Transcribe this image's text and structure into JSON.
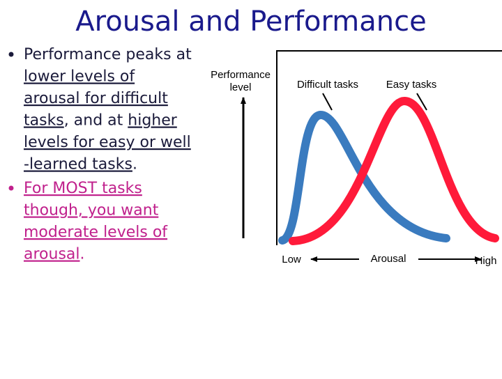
{
  "title": "Arousal and Performance",
  "bullets": [
    {
      "color": "#1a1a3a",
      "lines": [
        [
          {
            "text": "Performance peaks at",
            "underline": false
          }
        ],
        [
          {
            "text": "lower levels of",
            "underline": true
          }
        ],
        [
          {
            "text": "arousal for difficult",
            "underline": true
          }
        ],
        [
          {
            "text": "tasks",
            "underline": true
          },
          {
            "text": ", and at ",
            "underline": false
          },
          {
            "text": "higher",
            "underline": true
          }
        ],
        [
          {
            "text": "levels for easy or well",
            "underline": true
          }
        ],
        [
          {
            "text": "-learned tasks",
            "underline": true
          },
          {
            "text": ".",
            "underline": false
          }
        ]
      ]
    },
    {
      "color": "#c0208c",
      "lines": [
        [
          {
            "text": "For MOST tasks",
            "underline": true
          }
        ],
        [
          {
            "text": "though, you want",
            "underline": true
          }
        ],
        [
          {
            "text": "moderate levels of",
            "underline": true
          }
        ],
        [
          {
            "text": "arousal",
            "underline": true
          },
          {
            "text": ".",
            "underline": false
          }
        ]
      ]
    }
  ],
  "diagram": {
    "y_label": [
      "Performance",
      "level"
    ],
    "curve_labels": [
      "Difficult tasks",
      "Easy tasks"
    ],
    "x_low": "Low",
    "x_label": "Arousal",
    "x_high": "High"
  }
}
